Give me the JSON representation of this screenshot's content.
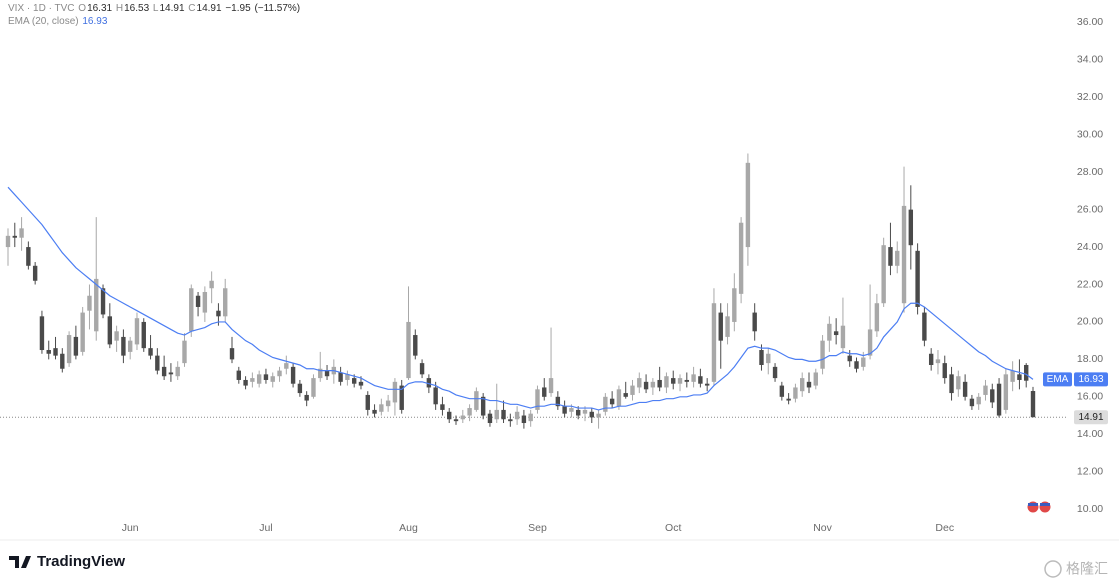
{
  "chart_data": {
    "type": "candlestick",
    "legend": {
      "symbol": "VIX · 1D · TVC",
      "ohlc_letters": [
        "O",
        "H",
        "L",
        "C"
      ],
      "open": 16.31,
      "high": 16.53,
      "low": 14.91,
      "close": 14.91,
      "change": {
        "value": -1.95,
        "label": "−1.95"
      },
      "change_pct": {
        "value": -11.57,
        "label": "(−11.57%)"
      }
    },
    "up_color": "#a8a8a8",
    "down_color": "#4a4a4a",
    "categories": [
      null,
      null,
      null,
      null,
      null,
      null,
      null,
      null,
      null,
      null,
      null,
      null,
      null,
      null,
      null,
      null,
      null,
      null,
      "Jun",
      null,
      null,
      null,
      null,
      null,
      null,
      null,
      null,
      null,
      null,
      null,
      null,
      null,
      null,
      null,
      null,
      null,
      null,
      null,
      "Jul",
      null,
      null,
      null,
      null,
      null,
      null,
      null,
      null,
      null,
      null,
      null,
      null,
      null,
      null,
      null,
      null,
      null,
      null,
      null,
      null,
      "Aug",
      null,
      null,
      null,
      null,
      null,
      null,
      null,
      null,
      null,
      null,
      null,
      null,
      null,
      null,
      null,
      null,
      null,
      null,
      "Sep",
      null,
      null,
      null,
      null,
      null,
      null,
      null,
      null,
      null,
      null,
      null,
      null,
      null,
      null,
      null,
      null,
      null,
      null,
      null,
      "Oct",
      null,
      null,
      null,
      null,
      null,
      null,
      null,
      null,
      null,
      null,
      null,
      null,
      null,
      null,
      null,
      null,
      null,
      null,
      null,
      null,
      null,
      "Nov",
      null,
      null,
      null,
      null,
      null,
      null,
      null,
      null,
      null,
      null,
      null,
      null,
      null,
      null,
      null,
      null,
      null,
      "Dec",
      null,
      null,
      null,
      null,
      null,
      null,
      null,
      null,
      null,
      null,
      null,
      null,
      null
    ],
    "ohlc": [
      [
        24.0,
        25.0,
        23.0,
        24.6
      ],
      [
        24.6,
        25.3,
        24.0,
        24.5
      ],
      [
        24.5,
        25.6,
        23.8,
        25.0
      ],
      [
        24.0,
        24.3,
        22.8,
        23.0
      ],
      [
        23.0,
        23.2,
        22.0,
        22.2
      ],
      [
        20.3,
        20.6,
        18.3,
        18.5
      ],
      [
        18.5,
        19.0,
        18.0,
        18.3
      ],
      [
        18.6,
        19.2,
        18.0,
        18.2
      ],
      [
        18.3,
        18.6,
        17.3,
        17.5
      ],
      [
        17.8,
        19.5,
        17.6,
        19.3
      ],
      [
        19.2,
        19.8,
        18.0,
        18.2
      ],
      [
        18.4,
        20.8,
        18.2,
        20.5
      ],
      [
        20.6,
        22.0,
        19.6,
        21.4
      ],
      [
        19.5,
        25.6,
        19.0,
        22.3
      ],
      [
        21.8,
        22.0,
        20.2,
        20.4
      ],
      [
        20.3,
        21.0,
        18.6,
        18.8
      ],
      [
        19.0,
        19.8,
        18.4,
        19.5
      ],
      [
        19.2,
        19.6,
        17.8,
        18.2
      ],
      [
        18.4,
        19.2,
        18.0,
        19.0
      ],
      [
        18.8,
        20.5,
        18.5,
        20.2
      ],
      [
        20.0,
        20.2,
        18.4,
        18.6
      ],
      [
        18.6,
        19.3,
        18.0,
        18.2
      ],
      [
        18.2,
        18.6,
        17.2,
        17.4
      ],
      [
        17.6,
        18.2,
        16.9,
        17.1
      ],
      [
        17.3,
        17.8,
        16.8,
        17.2
      ],
      [
        17.1,
        17.9,
        16.9,
        17.6
      ],
      [
        17.8,
        19.4,
        17.6,
        19.0
      ],
      [
        19.5,
        22.0,
        19.2,
        21.8
      ],
      [
        21.4,
        21.6,
        20.3,
        20.8
      ],
      [
        20.5,
        21.9,
        20.0,
        21.6
      ],
      [
        21.8,
        22.7,
        21.0,
        22.2
      ],
      [
        20.6,
        21.0,
        19.8,
        20.3
      ],
      [
        20.3,
        22.3,
        20.0,
        21.8
      ],
      [
        18.6,
        19.2,
        17.8,
        18.0
      ],
      [
        17.4,
        17.6,
        16.7,
        16.9
      ],
      [
        16.9,
        17.1,
        16.4,
        16.6
      ],
      [
        16.8,
        17.3,
        16.5,
        17.0
      ],
      [
        16.7,
        17.4,
        16.5,
        17.2
      ],
      [
        17.2,
        17.5,
        16.7,
        16.9
      ],
      [
        16.8,
        17.3,
        16.5,
        17.1
      ],
      [
        17.1,
        17.6,
        16.8,
        17.4
      ],
      [
        17.5,
        18.2,
        17.2,
        17.8
      ],
      [
        17.6,
        17.8,
        16.5,
        16.7
      ],
      [
        16.7,
        16.9,
        16.0,
        16.2
      ],
      [
        16.1,
        16.3,
        15.5,
        15.8
      ],
      [
        16.0,
        17.2,
        15.9,
        17.0
      ],
      [
        17.0,
        18.4,
        16.8,
        17.5
      ],
      [
        17.4,
        17.7,
        16.9,
        17.1
      ],
      [
        17.2,
        18.0,
        16.7,
        17.6
      ],
      [
        17.3,
        17.6,
        16.6,
        16.8
      ],
      [
        16.9,
        17.4,
        16.6,
        17.2
      ],
      [
        17.0,
        17.2,
        16.5,
        16.7
      ],
      [
        16.8,
        17.1,
        16.4,
        16.6
      ],
      [
        16.1,
        16.3,
        15.0,
        15.3
      ],
      [
        15.3,
        15.6,
        14.9,
        15.1
      ],
      [
        15.2,
        15.9,
        15.0,
        15.6
      ],
      [
        15.5,
        16.1,
        15.2,
        15.8
      ],
      [
        15.7,
        17.0,
        15.0,
        16.8
      ],
      [
        16.6,
        16.9,
        15.1,
        15.3
      ],
      [
        17.0,
        21.9,
        16.9,
        20.0
      ],
      [
        19.3,
        19.6,
        18.0,
        18.2
      ],
      [
        17.8,
        18.0,
        17.0,
        17.2
      ],
      [
        17.0,
        17.2,
        16.2,
        16.5
      ],
      [
        16.5,
        16.8,
        15.3,
        15.6
      ],
      [
        15.6,
        16.0,
        15.0,
        15.3
      ],
      [
        15.2,
        15.4,
        14.6,
        14.8
      ],
      [
        14.8,
        15.0,
        14.5,
        14.7
      ],
      [
        14.8,
        15.3,
        14.6,
        15.0
      ],
      [
        15.0,
        15.6,
        14.7,
        15.4
      ],
      [
        15.3,
        16.5,
        15.2,
        16.3
      ],
      [
        16.0,
        16.2,
        14.8,
        15.0
      ],
      [
        15.1,
        15.3,
        14.4,
        14.6
      ],
      [
        14.8,
        16.7,
        14.6,
        15.3
      ],
      [
        15.3,
        15.8,
        14.6,
        14.8
      ],
      [
        14.8,
        15.1,
        14.4,
        14.7
      ],
      [
        14.8,
        15.5,
        14.5,
        15.2
      ],
      [
        15.0,
        15.3,
        14.3,
        14.6
      ],
      [
        14.7,
        15.3,
        14.4,
        15.1
      ],
      [
        15.3,
        16.6,
        15.1,
        16.4
      ],
      [
        16.5,
        17.0,
        15.8,
        16.0
      ],
      [
        16.2,
        19.7,
        16.0,
        17.0
      ],
      [
        16.0,
        16.3,
        15.3,
        15.5
      ],
      [
        15.5,
        15.8,
        14.9,
        15.1
      ],
      [
        15.2,
        15.6,
        14.9,
        15.4
      ],
      [
        15.3,
        15.5,
        14.8,
        15.0
      ],
      [
        15.1,
        15.5,
        14.7,
        15.3
      ],
      [
        15.2,
        15.4,
        14.6,
        14.9
      ],
      [
        14.9,
        15.3,
        14.3,
        15.1
      ],
      [
        15.2,
        16.2,
        15.0,
        16.0
      ],
      [
        15.9,
        16.3,
        15.4,
        15.6
      ],
      [
        15.5,
        16.6,
        15.3,
        16.4
      ],
      [
        16.2,
        16.8,
        15.9,
        16.0
      ],
      [
        16.1,
        16.9,
        15.8,
        16.6
      ],
      [
        16.5,
        17.3,
        16.2,
        17.0
      ],
      [
        16.8,
        17.2,
        16.2,
        16.4
      ],
      [
        16.5,
        17.0,
        16.1,
        16.8
      ],
      [
        16.9,
        17.6,
        16.3,
        16.5
      ],
      [
        16.5,
        17.3,
        16.2,
        17.1
      ],
      [
        17.0,
        17.4,
        16.4,
        16.7
      ],
      [
        16.7,
        17.2,
        16.3,
        17.0
      ],
      [
        16.9,
        17.3,
        16.5,
        16.8
      ],
      [
        16.8,
        17.6,
        16.5,
        17.2
      ],
      [
        17.1,
        17.5,
        16.5,
        16.7
      ],
      [
        16.7,
        17.0,
        16.3,
        16.6
      ],
      [
        16.8,
        21.8,
        16.6,
        21.0
      ],
      [
        20.5,
        21.0,
        17.5,
        19.0
      ],
      [
        19.2,
        21.0,
        18.8,
        20.3
      ],
      [
        20.0,
        22.6,
        19.5,
        21.8
      ],
      [
        21.5,
        25.6,
        21.0,
        25.3
      ],
      [
        24.0,
        29.0,
        23.0,
        28.5
      ],
      [
        20.5,
        21.0,
        19.0,
        19.5
      ],
      [
        18.5,
        18.8,
        17.4,
        17.7
      ],
      [
        17.8,
        18.6,
        17.2,
        18.3
      ],
      [
        17.6,
        17.8,
        16.8,
        17.0
      ],
      [
        16.6,
        16.8,
        15.8,
        16.0
      ],
      [
        15.9,
        16.2,
        15.6,
        15.8
      ],
      [
        15.9,
        16.7,
        15.7,
        16.5
      ],
      [
        16.3,
        17.3,
        16.0,
        17.0
      ],
      [
        16.8,
        17.3,
        16.2,
        16.5
      ],
      [
        16.6,
        17.5,
        16.4,
        17.3
      ],
      [
        17.5,
        19.3,
        17.2,
        19.0
      ],
      [
        19.0,
        20.3,
        18.4,
        19.9
      ],
      [
        19.5,
        20.2,
        18.8,
        19.3
      ],
      [
        18.6,
        21.3,
        18.3,
        19.8
      ],
      [
        18.2,
        18.5,
        17.6,
        17.9
      ],
      [
        17.9,
        18.1,
        17.3,
        17.5
      ],
      [
        17.6,
        18.4,
        17.4,
        18.1
      ],
      [
        18.2,
        22.0,
        18.0,
        19.6
      ],
      [
        19.5,
        21.5,
        19.2,
        21.0
      ],
      [
        21.0,
        24.5,
        20.8,
        24.1
      ],
      [
        24.0,
        25.3,
        22.5,
        23.0
      ],
      [
        23.0,
        24.3,
        22.6,
        23.8
      ],
      [
        21.0,
        28.3,
        20.5,
        26.2
      ],
      [
        26.0,
        27.3,
        22.8,
        24.1
      ],
      [
        23.8,
        24.2,
        20.4,
        20.8
      ],
      [
        20.5,
        20.8,
        18.7,
        19.0
      ],
      [
        18.3,
        18.6,
        17.4,
        17.7
      ],
      [
        17.8,
        18.5,
        17.2,
        18.0
      ],
      [
        17.8,
        18.2,
        16.7,
        17.0
      ],
      [
        17.2,
        17.6,
        15.8,
        16.2
      ],
      [
        16.4,
        17.4,
        16.0,
        17.1
      ],
      [
        16.8,
        17.2,
        15.8,
        16.0
      ],
      [
        15.9,
        16.1,
        15.3,
        15.5
      ],
      [
        15.6,
        16.2,
        15.3,
        16.0
      ],
      [
        16.1,
        16.9,
        15.8,
        16.6
      ],
      [
        16.4,
        16.7,
        15.4,
        15.7
      ],
      [
        16.7,
        17.0,
        14.9,
        15.0
      ],
      [
        15.3,
        17.5,
        15.1,
        17.2
      ],
      [
        16.8,
        17.9,
        16.3,
        17.4
      ],
      [
        17.2,
        18.0,
        16.4,
        16.9
      ],
      [
        17.7,
        17.8,
        16.5,
        16.86
      ],
      [
        16.31,
        16.53,
        14.91,
        14.91
      ]
    ],
    "ema": {
      "name": "EMA (20, close)",
      "tag": "EMA",
      "last": 16.93,
      "color": "#4c7ef3",
      "values": [
        27.2,
        26.8,
        26.4,
        26.0,
        25.6,
        25.2,
        24.7,
        24.2,
        23.7,
        23.3,
        22.9,
        22.6,
        22.3,
        22.0,
        21.7,
        21.4,
        21.2,
        21.0,
        20.8,
        20.6,
        20.4,
        20.2,
        20.0,
        19.8,
        19.6,
        19.4,
        19.3,
        19.5,
        19.6,
        19.7,
        19.9,
        20.0,
        20.0,
        19.6,
        19.3,
        19.0,
        18.8,
        18.5,
        18.3,
        18.1,
        18.0,
        17.9,
        17.8,
        17.7,
        17.5,
        17.5,
        17.4,
        17.4,
        17.4,
        17.3,
        17.2,
        17.1,
        17.0,
        16.8,
        16.6,
        16.5,
        16.4,
        16.4,
        16.4,
        16.7,
        16.8,
        16.8,
        16.7,
        16.6,
        16.4,
        16.3,
        16.1,
        16.0,
        15.9,
        15.9,
        15.9,
        15.8,
        15.8,
        15.7,
        15.6,
        15.6,
        15.5,
        15.4,
        15.5,
        15.5,
        15.6,
        15.6,
        15.5,
        15.5,
        15.4,
        15.4,
        15.4,
        15.3,
        15.4,
        15.4,
        15.5,
        15.5,
        15.6,
        15.7,
        15.7,
        15.8,
        15.8,
        15.9,
        15.9,
        16.0,
        16.0,
        16.1,
        16.1,
        16.2,
        16.6,
        16.9,
        17.2,
        17.6,
        18.1,
        18.6,
        18.7,
        18.6,
        18.6,
        18.5,
        18.3,
        18.1,
        18.0,
        18.0,
        17.9,
        17.9,
        18.0,
        18.2,
        18.2,
        18.4,
        18.3,
        18.3,
        18.2,
        18.3,
        18.6,
        19.2,
        19.6,
        20.0,
        20.7,
        21.0,
        21.0,
        20.8,
        20.5,
        20.2,
        19.9,
        19.6,
        19.3,
        19.0,
        18.7,
        18.4,
        18.2,
        17.9,
        17.7,
        17.5,
        17.4,
        17.3,
        17.2,
        16.93
      ]
    },
    "last_price": 14.91,
    "ylim": [
      8.35,
      37.2
    ],
    "yticks": [
      {
        "value": 10,
        "label": "10.00"
      },
      {
        "value": 12,
        "label": "12.00"
      },
      {
        "value": 14,
        "label": "14.00"
      },
      {
        "value": 16,
        "label": "16.00"
      },
      {
        "value": 18,
        "label": "18.00"
      },
      {
        "value": 20,
        "label": "20.00"
      },
      {
        "value": 22,
        "label": "22.00"
      },
      {
        "value": 24,
        "label": "24.00"
      },
      {
        "value": 26,
        "label": "26.00"
      },
      {
        "value": 28,
        "label": "28.00"
      },
      {
        "value": 30,
        "label": "30.00"
      },
      {
        "value": 32,
        "label": "32.00"
      },
      {
        "value": 34,
        "label": "34.00"
      },
      {
        "value": 36,
        "label": "36.00"
      }
    ],
    "grid": false,
    "brand": "TradingView",
    "watermark": "格隆汇"
  }
}
